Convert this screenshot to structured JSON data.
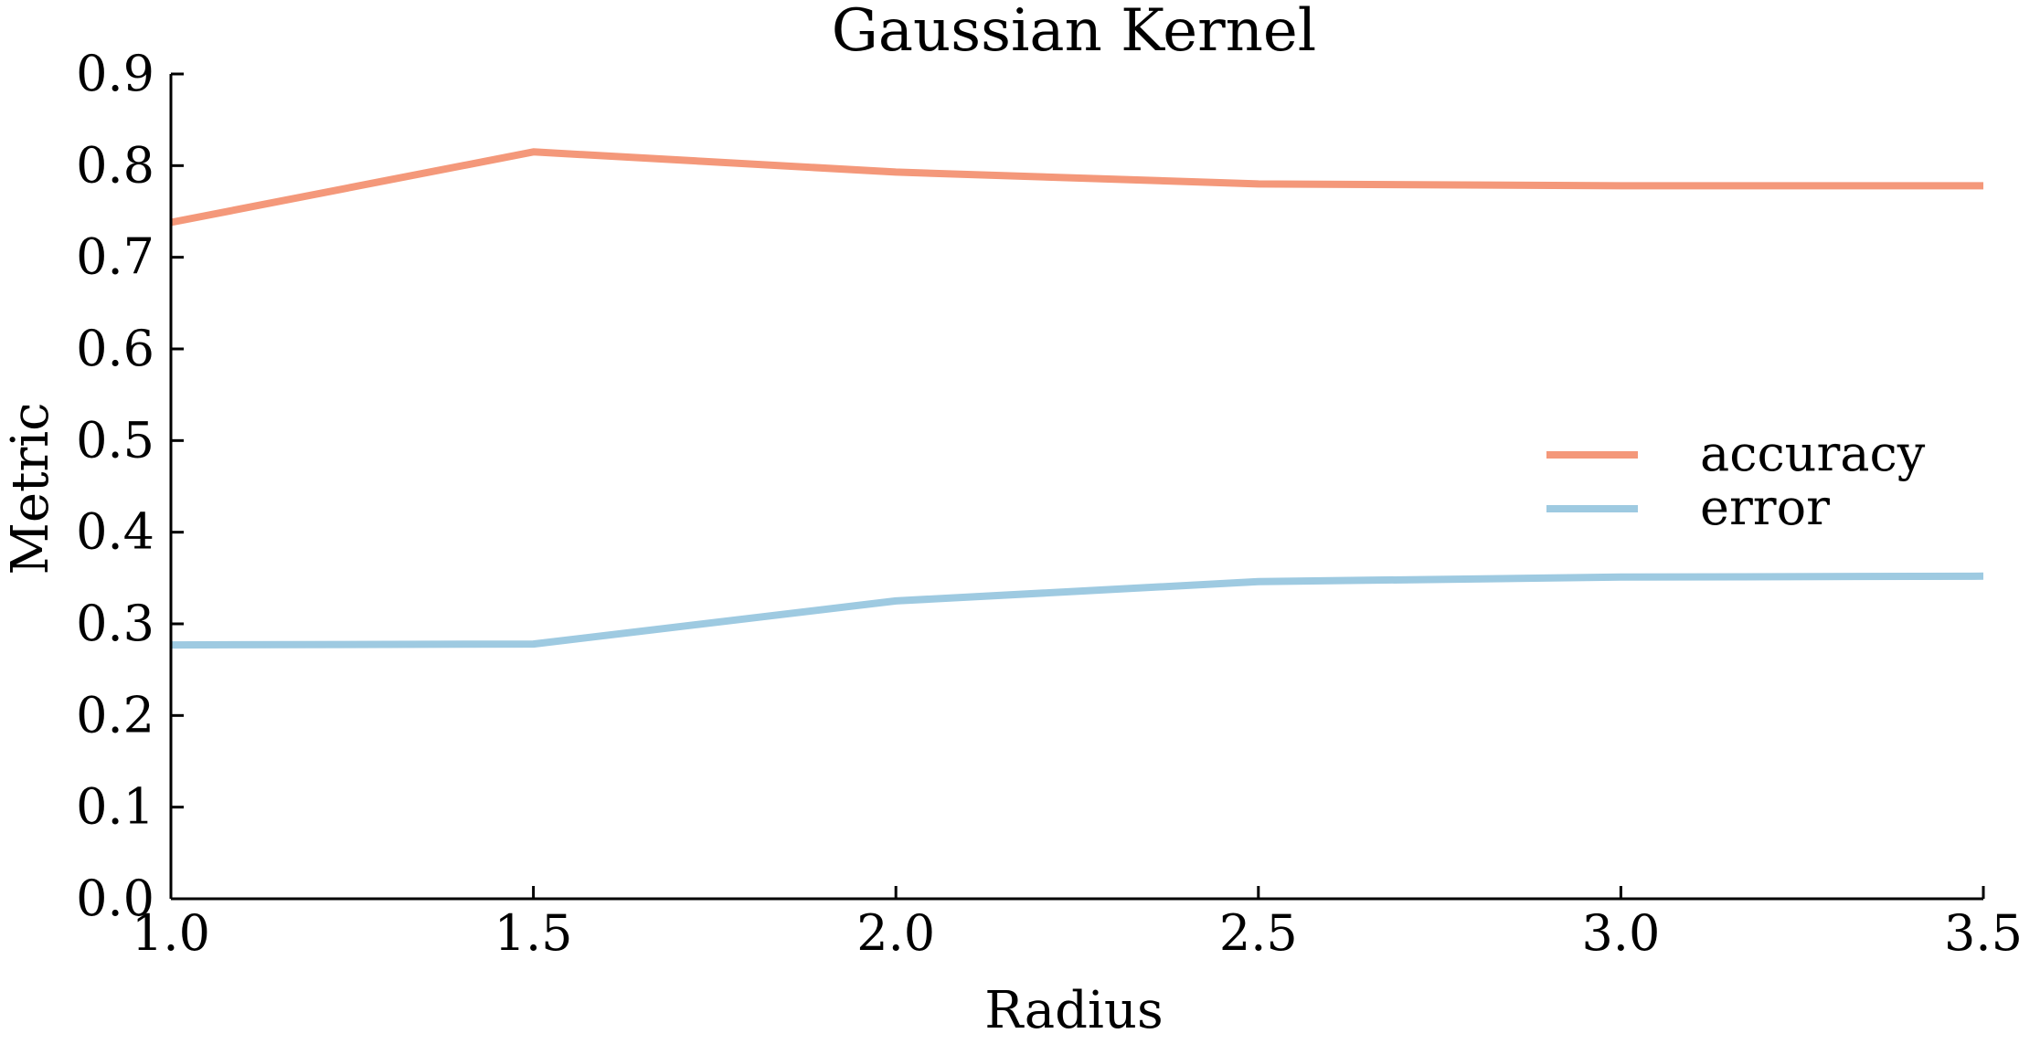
{
  "chart_data": {
    "type": "line",
    "title": "Gaussian Kernel",
    "xlabel": "Radius",
    "ylabel": "Metric",
    "xlim": [
      1.0,
      3.5
    ],
    "ylim": [
      0.0,
      0.9
    ],
    "x_ticks": [
      "1.0",
      "1.5",
      "2.0",
      "2.5",
      "3.0",
      "3.5"
    ],
    "y_ticks": [
      "0.0",
      "0.1",
      "0.2",
      "0.3",
      "0.4",
      "0.5",
      "0.6",
      "0.7",
      "0.8",
      "0.9"
    ],
    "grid": false,
    "legend_position": "right",
    "series": [
      {
        "name": "accuracy",
        "color": "#f4987a",
        "x": [
          1.0,
          1.5,
          2.0,
          2.5,
          3.0,
          3.5
        ],
        "y": [
          0.738,
          0.815,
          0.793,
          0.78,
          0.778,
          0.778
        ]
      },
      {
        "name": "error",
        "color": "#9ecae1",
        "x": [
          1.0,
          1.5,
          2.0,
          2.5,
          3.0,
          3.5
        ],
        "y": [
          0.277,
          0.278,
          0.325,
          0.346,
          0.351,
          0.352
        ]
      }
    ]
  }
}
